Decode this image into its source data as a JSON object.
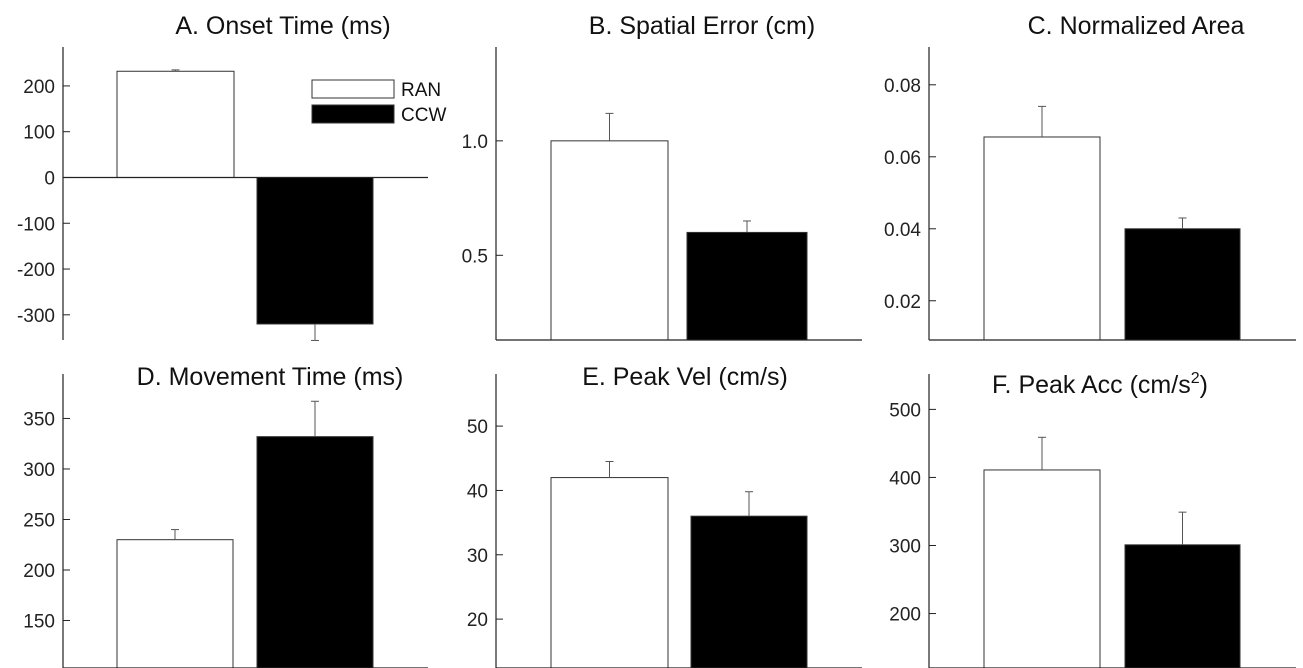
{
  "legend": {
    "items": [
      {
        "label": "RAN",
        "color": "#ffffff"
      },
      {
        "label": "CCW",
        "color": "#000000"
      }
    ]
  },
  "colors": {
    "RAN": "#ffffff",
    "CCW": "#000000",
    "axis": "#222222"
  },
  "chart_data": [
    {
      "type": "bar",
      "title": "A. Onset Time (ms)",
      "categories": [
        "RAN",
        "CCW"
      ],
      "values": [
        232,
        -320
      ],
      "errors": [
        3,
        36
      ],
      "ylim": [
        -355,
        285
      ],
      "yticks": [
        200,
        100,
        0,
        -100,
        -200,
        -300
      ],
      "zero_line": true
    },
    {
      "type": "bar",
      "title": "B. Spatial Error (cm)",
      "categories": [
        "RAN",
        "CCW"
      ],
      "values": [
        1.0,
        0.6
      ],
      "errors": [
        0.12,
        0.05
      ],
      "ylim": [
        0.13,
        1.41
      ],
      "yticks": [
        "1.0",
        "0.5"
      ]
    },
    {
      "type": "bar",
      "title": "C. Normalized Area",
      "categories": [
        "RAN",
        "CCW"
      ],
      "values": [
        0.0655,
        0.04
      ],
      "errors": [
        0.0085,
        0.003
      ],
      "ylim": [
        0.0091,
        0.0905
      ],
      "yticks": [
        "0.08",
        "0.06",
        "0.04",
        "0.02"
      ]
    },
    {
      "type": "bar",
      "title": "D. Movement Time (ms)",
      "categories": [
        "RAN",
        "CCW"
      ],
      "values": [
        230,
        332
      ],
      "errors": [
        10,
        35
      ],
      "ylim": [
        103,
        394
      ],
      "yticks": [
        350,
        300,
        250,
        200,
        150
      ]
    },
    {
      "type": "bar",
      "title": "E. Peak Vel (cm/s)",
      "categories": [
        "RAN",
        "CCW"
      ],
      "values": [
        42,
        36
      ],
      "errors": [
        2.5,
        3.8
      ],
      "ylim": [
        12.4,
        58.1
      ],
      "yticks": [
        50,
        40,
        30,
        20
      ]
    },
    {
      "type": "bar",
      "title": "F. Peak Acc (cm/s",
      "title_sup": "2",
      "title_end": ")",
      "categories": [
        "RAN",
        "CCW"
      ],
      "values": [
        411,
        301
      ],
      "errors": [
        48,
        48
      ],
      "ylim": [
        120,
        552
      ],
      "yticks": [
        500,
        400,
        300,
        200
      ]
    }
  ]
}
